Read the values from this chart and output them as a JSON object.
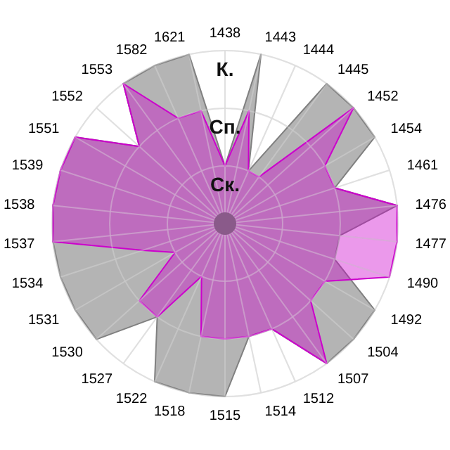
{
  "chart_data": {
    "type": "radar",
    "categories": [
      "1438",
      "1443",
      "1444",
      "1445",
      "1452",
      "1454",
      "1461",
      "1476",
      "1477",
      "1490",
      "1492",
      "1504",
      "1507",
      "1512",
      "1514",
      "1515",
      "1518",
      "1522",
      "1527",
      "1530",
      "1531",
      "1534",
      "1537",
      "1538",
      "1539",
      "1551",
      "1552",
      "1553",
      "1582",
      "1621"
    ],
    "series": [
      {
        "color": "#b4b4b4",
        "values": [
          1,
          3,
          1,
          3,
          3,
          3,
          2,
          3,
          2,
          2,
          3,
          3,
          3,
          2,
          2,
          3,
          3,
          3,
          2,
          3,
          3,
          3,
          3,
          3,
          3,
          3,
          2,
          3,
          3,
          3
        ]
      },
      {
        "color": "#cc00cc",
        "values": [
          1,
          2,
          1,
          1,
          3,
          2,
          2,
          3,
          3,
          3,
          2,
          2,
          3,
          2,
          2,
          2,
          2,
          1,
          2,
          2,
          1,
          1.5,
          3,
          3,
          3,
          3,
          2,
          3,
          2,
          2
        ]
      }
    ],
    "ylim": [
      0,
      3
    ],
    "yticks": [
      {
        "value": 1,
        "label": "Ск."
      },
      {
        "value": 2,
        "label": "Сп."
      },
      {
        "value": 3,
        "label": "К."
      }
    ],
    "grid": true
  }
}
